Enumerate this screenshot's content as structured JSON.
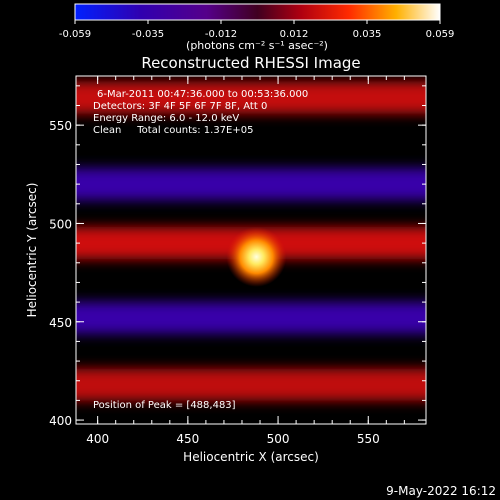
{
  "chart_data": {
    "type": "heatmap",
    "title": "Reconstructed RHESSI Image",
    "xlabel": "Heliocentric X (arcsec)",
    "ylabel": "Heliocentric Y (arcsec)",
    "xlim": [
      388,
      582
    ],
    "ylim": [
      398,
      575
    ],
    "xticks": [
      400,
      450,
      500,
      550
    ],
    "yticks": [
      400,
      450,
      500,
      550
    ],
    "colorbar": {
      "label": "(photons cm⁻² s⁻¹ asec⁻²)",
      "ticks": [
        "-0.059",
        "-0.035",
        "-0.012",
        "0.012",
        "0.035",
        "0.059"
      ],
      "range": [
        -0.059,
        0.059
      ]
    },
    "info_lines": [
      "6-Mar-2011 00:47:36.000 to 00:53:36.000",
      "Detectors: 3F 4F 5F 6F 7F 8F, Att 0",
      "Energy Range: 6.0 - 12.0 keV",
      "Clean     Total counts: 1.37E+05"
    ],
    "peak_label": "Position of Peak = [488,483]",
    "peak": {
      "x": 488,
      "y": 483,
      "value": 0.059
    },
    "timestamp": "9-May-2022 16:12",
    "bands": [
      {
        "y": 564,
        "value": 0.018
      },
      {
        "y": 520,
        "value": -0.034
      },
      {
        "y": 490,
        "value": 0.02
      },
      {
        "y": 452,
        "value": -0.034
      },
      {
        "y": 418,
        "value": 0.017
      }
    ]
  }
}
